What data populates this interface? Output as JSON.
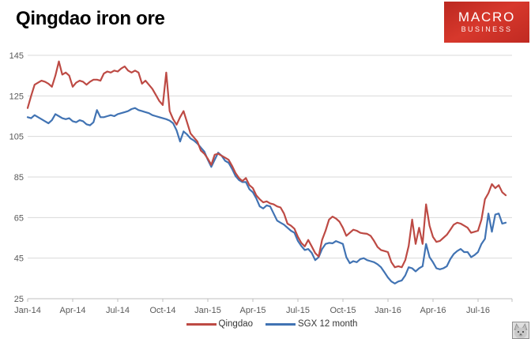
{
  "header": {
    "title": "Qingdao iron ore"
  },
  "logo": {
    "line1": "MACRO",
    "line2": "BUSINESS",
    "background": "#c62b22"
  },
  "corner_thumbnail": {
    "description": "small grayscale animal photo thumbnail"
  },
  "chart_data": {
    "type": "line",
    "title": "Qingdao iron ore",
    "x_unit": "weeks from Jan-2014, weekly samples",
    "x_axis": {
      "tick_labels": [
        "Jan-14",
        "Apr-14",
        "Jul-14",
        "Oct-14",
        "Jan-15",
        "Apr-15",
        "Jul-15",
        "Oct-15",
        "Jan-16",
        "Apr-16",
        "Jul-16"
      ],
      "weeks_per_tick": 13
    },
    "y_axis": {
      "range": [
        25,
        145
      ],
      "ticks": [
        145,
        125,
        105,
        85,
        65,
        45,
        25
      ]
    },
    "grid": true,
    "legend_position": "bottom-center",
    "colors": {
      "grid": "#d9d9d9",
      "axis": "#bfbfbf",
      "tick_text": "#595959"
    },
    "series": [
      {
        "name": "Qingdao",
        "color": "#bd4a44",
        "values": [
          119,
          125,
          130.5,
          131.5,
          132.5,
          132,
          131,
          129.5,
          135,
          142,
          135.5,
          136.5,
          135,
          129.5,
          131.5,
          132.5,
          132,
          130.5,
          132,
          133,
          133,
          132.5,
          136,
          137,
          136.5,
          137.5,
          137,
          138.5,
          139.5,
          137.5,
          136.5,
          137.5,
          136.5,
          131,
          132.5,
          130.5,
          128.5,
          125.5,
          122.5,
          120.5,
          136.5,
          117.5,
          113.5,
          110.8,
          114.5,
          117.5,
          112,
          106.5,
          104.5,
          102.5,
          98,
          96.5,
          94,
          91,
          96,
          96.5,
          95.5,
          94.5,
          93.5,
          90.5,
          87,
          84.5,
          83,
          84.5,
          81,
          79.5,
          76,
          74,
          72.5,
          73,
          72,
          71.5,
          70.5,
          70,
          67,
          62,
          61,
          59.5,
          55.5,
          52.5,
          50.8,
          54,
          50.8,
          47.5,
          45.8,
          54,
          58.5,
          64,
          65.5,
          64.5,
          63,
          60,
          56,
          57.5,
          59,
          58.5,
          57.5,
          57.2,
          57,
          56,
          53.5,
          50.5,
          49,
          48.5,
          48,
          43,
          40.5,
          41,
          40.5,
          44,
          51,
          64,
          52,
          60,
          52,
          71.5,
          61,
          55.5,
          53,
          53.5,
          55,
          56.5,
          59,
          61.5,
          62.5,
          62,
          61,
          60,
          57.5,
          58,
          58.5,
          64,
          74,
          77,
          81.5,
          79.5,
          81,
          77.5,
          76
        ]
      },
      {
        "name": "SGX 12 month",
        "color": "#4173b3",
        "values": [
          114.5,
          114,
          115.5,
          114.5,
          113.5,
          112.5,
          111.5,
          113,
          116,
          115,
          114,
          113.5,
          114,
          112.5,
          112,
          113,
          112.5,
          111,
          110.5,
          112,
          118,
          114.5,
          114.5,
          115,
          115.5,
          115,
          116,
          116.5,
          117,
          117.5,
          118.5,
          119,
          118,
          117.5,
          117,
          116.5,
          115.5,
          115,
          114.5,
          114,
          113.5,
          112.8,
          111.5,
          108,
          102.5,
          107.5,
          106,
          104,
          103,
          101.5,
          99.5,
          97.5,
          93.5,
          90,
          93.5,
          97,
          95.5,
          93,
          92,
          89,
          85.5,
          83.5,
          82.5,
          82.5,
          79,
          77.5,
          74.5,
          70.5,
          69.5,
          71,
          70.5,
          67,
          63.5,
          62.5,
          61.5,
          60,
          58.5,
          57.5,
          53.5,
          51,
          49,
          49.5,
          47.6,
          44,
          45.5,
          49.5,
          52,
          52.5,
          52.3,
          53.4,
          52.7,
          52,
          45.5,
          42.5,
          43.5,
          43,
          44.5,
          45,
          44,
          43.5,
          43,
          42,
          40.5,
          38,
          35.5,
          33.5,
          32.5,
          33.5,
          34,
          36.5,
          40.5,
          40,
          38.5,
          40,
          41,
          52,
          45.5,
          43,
          40,
          39.5,
          40,
          41,
          44.5,
          47,
          48.5,
          49.5,
          48,
          48,
          45.5,
          46.5,
          48,
          52,
          54.5,
          67,
          58,
          66.5,
          67,
          62,
          62.5
        ]
      }
    ]
  }
}
